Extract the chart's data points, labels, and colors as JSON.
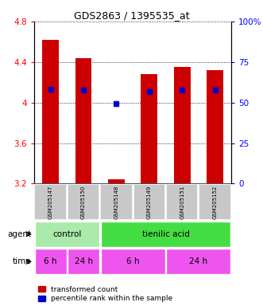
{
  "title": "GDS2863 / 1395535_at",
  "samples": [
    "GSM205147",
    "GSM205150",
    "GSM205148",
    "GSM205149",
    "GSM205151",
    "GSM205152"
  ],
  "bar_tops": [
    4.62,
    4.44,
    3.24,
    4.28,
    4.35,
    4.32
  ],
  "bar_bottom": 3.2,
  "blue_dots": [
    4.13,
    4.12,
    3.99,
    4.11,
    4.12,
    4.12
  ],
  "ylim": [
    3.2,
    4.8
  ],
  "yticks_left": [
    3.2,
    3.6,
    4.0,
    4.4,
    4.8
  ],
  "ytick_left_labels": [
    "3.2",
    "3.6",
    "4",
    "4.4",
    "4.8"
  ],
  "yticks_right_pct": [
    0,
    25,
    50,
    75,
    100
  ],
  "ytick_right_labels": [
    "0",
    "25",
    "50",
    "75",
    "100%"
  ],
  "bar_color": "#cc0000",
  "dot_color": "#0000cc",
  "agent_color_control": "#aaeaaa",
  "agent_color_tienilic": "#44dd44",
  "time_color": "#ee55ee",
  "sample_bg": "#c8c8c8",
  "legend_red_label": "transformed count",
  "legend_blue_label": "percentile rank within the sample"
}
